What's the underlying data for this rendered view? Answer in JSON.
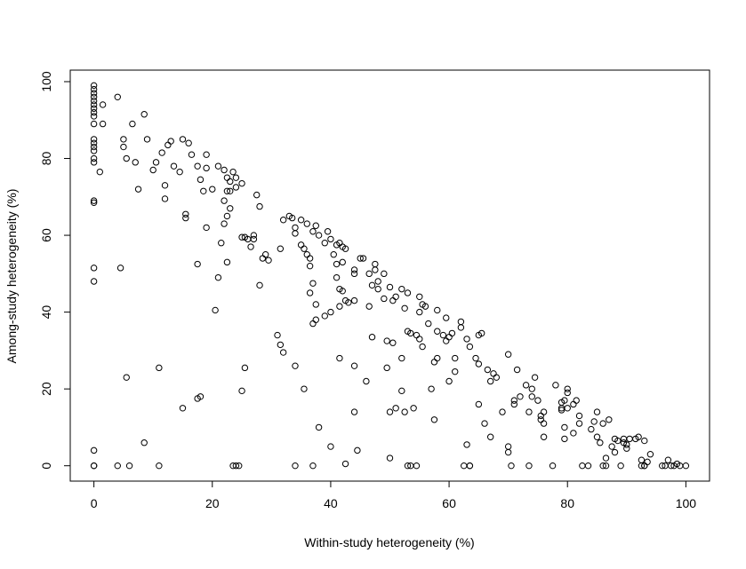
{
  "chart_data": {
    "type": "scatter",
    "title": "",
    "xlabel": "Within-study heterogeneity (%)",
    "ylabel": "Among-study heterogeneity (%)",
    "xlim": [
      -4,
      104
    ],
    "ylim": [
      -4,
      103
    ],
    "xticks": [
      0,
      20,
      40,
      60,
      80,
      100
    ],
    "yticks": [
      0,
      20,
      40,
      60,
      80,
      100
    ],
    "xtick_labels": [
      "0",
      "20",
      "40",
      "60",
      "80",
      "100"
    ],
    "ytick_labels": [
      "0",
      "20",
      "40",
      "60",
      "80",
      "100"
    ],
    "grid": false,
    "marker": "open-circle",
    "points": [
      [
        0,
        99
      ],
      [
        0,
        98
      ],
      [
        0,
        97
      ],
      [
        0,
        96
      ],
      [
        0,
        95
      ],
      [
        0,
        94
      ],
      [
        0,
        93
      ],
      [
        0,
        92
      ],
      [
        0,
        91
      ],
      [
        0,
        89
      ],
      [
        0,
        85
      ],
      [
        0,
        84
      ],
      [
        0,
        83
      ],
      [
        0,
        82
      ],
      [
        0,
        80
      ],
      [
        0,
        79
      ],
      [
        0,
        69
      ],
      [
        0,
        68.5
      ],
      [
        0,
        51.5
      ],
      [
        0,
        48
      ],
      [
        0,
        4
      ],
      [
        0,
        0
      ],
      [
        0,
        0
      ],
      [
        1.5,
        94
      ],
      [
        1.5,
        89
      ],
      [
        1,
        76.5
      ],
      [
        4,
        96
      ],
      [
        4.5,
        51.5
      ],
      [
        5,
        85
      ],
      [
        5,
        83
      ],
      [
        5.5,
        80
      ],
      [
        5.5,
        23
      ],
      [
        4,
        0
      ],
      [
        6,
        0
      ],
      [
        6.5,
        89
      ],
      [
        7,
        79
      ],
      [
        7.5,
        72
      ],
      [
        8.5,
        91.5
      ],
      [
        9,
        85
      ],
      [
        8.5,
        6
      ],
      [
        10,
        77
      ],
      [
        10.5,
        79
      ],
      [
        11.5,
        81.5
      ],
      [
        12,
        73
      ],
      [
        12,
        69.5
      ],
      [
        11,
        25.5
      ],
      [
        11,
        0
      ],
      [
        12.5,
        83.5
      ],
      [
        13,
        84.5
      ],
      [
        13.5,
        78
      ],
      [
        14.5,
        76.5
      ],
      [
        15,
        85
      ],
      [
        15.5,
        64.5
      ],
      [
        15.5,
        65.5
      ],
      [
        15,
        15
      ],
      [
        16,
        84
      ],
      [
        16.5,
        81
      ],
      [
        17.5,
        78
      ],
      [
        17.5,
        52.5
      ],
      [
        18,
        74.5
      ],
      [
        18.5,
        71.5
      ],
      [
        18,
        18
      ],
      [
        17.5,
        17.5
      ],
      [
        19,
        81
      ],
      [
        19,
        77.5
      ],
      [
        19,
        62
      ],
      [
        20,
        72
      ],
      [
        20.5,
        40.5
      ],
      [
        21,
        49
      ],
      [
        21,
        78
      ],
      [
        21.5,
        58
      ],
      [
        22,
        77
      ],
      [
        22,
        69
      ],
      [
        22,
        63
      ],
      [
        22.5,
        75
      ],
      [
        22.5,
        71.5
      ],
      [
        22.5,
        65
      ],
      [
        22.5,
        53
      ],
      [
        23,
        74
      ],
      [
        23,
        67
      ],
      [
        23,
        71.5
      ],
      [
        23.5,
        76.5
      ],
      [
        24,
        75
      ],
      [
        24,
        72.5
      ],
      [
        25,
        73.5
      ],
      [
        25,
        59.5
      ],
      [
        25.5,
        59.5
      ],
      [
        25,
        19.5
      ],
      [
        25.5,
        25.5
      ],
      [
        24.5,
        0
      ],
      [
        23.5,
        0
      ],
      [
        24,
        0
      ],
      [
        26,
        59
      ],
      [
        26.5,
        57
      ],
      [
        27,
        59
      ],
      [
        27,
        60
      ],
      [
        27.5,
        70.5
      ],
      [
        28,
        67.5
      ],
      [
        28,
        47
      ],
      [
        28.5,
        54
      ],
      [
        29,
        55
      ],
      [
        29.5,
        53.5
      ],
      [
        31,
        34
      ],
      [
        31.5,
        31.5
      ],
      [
        31.5,
        56.5
      ],
      [
        32,
        64
      ],
      [
        32,
        29.5
      ],
      [
        33,
        65
      ],
      [
        33.5,
        64.5
      ],
      [
        34,
        62
      ],
      [
        34,
        60.5
      ],
      [
        34,
        26
      ],
      [
        34,
        0
      ],
      [
        35,
        64
      ],
      [
        35,
        57.5
      ],
      [
        35.5,
        56.5
      ],
      [
        35.5,
        20
      ],
      [
        36,
        63
      ],
      [
        36,
        55
      ],
      [
        36.5,
        54
      ],
      [
        36.5,
        52
      ],
      [
        36.5,
        45
      ],
      [
        37,
        61
      ],
      [
        37,
        47.5
      ],
      [
        37,
        37
      ],
      [
        37,
        0
      ],
      [
        37.5,
        62.5
      ],
      [
        37.5,
        42
      ],
      [
        37.5,
        38
      ],
      [
        38,
        60
      ],
      [
        38,
        10
      ],
      [
        39,
        58
      ],
      [
        39,
        39
      ],
      [
        39.5,
        61
      ],
      [
        40,
        59
      ],
      [
        40,
        40
      ],
      [
        40,
        5
      ],
      [
        40.5,
        55
      ],
      [
        41,
        57.5
      ],
      [
        41,
        52.5
      ],
      [
        41,
        49
      ],
      [
        41.5,
        58
      ],
      [
        41.5,
        46
      ],
      [
        41.5,
        41.5
      ],
      [
        41.5,
        28
      ],
      [
        42,
        57
      ],
      [
        42,
        53
      ],
      [
        42,
        45.5
      ],
      [
        42.5,
        56.5
      ],
      [
        42.5,
        43
      ],
      [
        42.5,
        0.5
      ],
      [
        43,
        42.5
      ],
      [
        44,
        51
      ],
      [
        44,
        50
      ],
      [
        44,
        43
      ],
      [
        44,
        26
      ],
      [
        44,
        14
      ],
      [
        44.5,
        4
      ],
      [
        45,
        54
      ],
      [
        45.5,
        54
      ],
      [
        46,
        22
      ],
      [
        46.5,
        50
      ],
      [
        46.5,
        41.5
      ],
      [
        47,
        47
      ],
      [
        47,
        33.5
      ],
      [
        47.5,
        52.5
      ],
      [
        47.5,
        51
      ],
      [
        48,
        48
      ],
      [
        48,
        46
      ],
      [
        49,
        50
      ],
      [
        49,
        43.5
      ],
      [
        49.5,
        32.5
      ],
      [
        49.5,
        25.5
      ],
      [
        50,
        46.5
      ],
      [
        50,
        14
      ],
      [
        50,
        2
      ],
      [
        50.5,
        43
      ],
      [
        50.5,
        32
      ],
      [
        51,
        44
      ],
      [
        51,
        15
      ],
      [
        52,
        46
      ],
      [
        52,
        28
      ],
      [
        52,
        19.5
      ],
      [
        52.5,
        14
      ],
      [
        52.5,
        41
      ],
      [
        53,
        45
      ],
      [
        53,
        35
      ],
      [
        53.5,
        34.5
      ],
      [
        53,
        0
      ],
      [
        53.5,
        0
      ],
      [
        54,
        15
      ],
      [
        54.5,
        34
      ],
      [
        54.5,
        0
      ],
      [
        55,
        44
      ],
      [
        55,
        40
      ],
      [
        55,
        33
      ],
      [
        55.5,
        42
      ],
      [
        55.5,
        31
      ],
      [
        56,
        41.5
      ],
      [
        56.5,
        37
      ],
      [
        57,
        20
      ],
      [
        57.5,
        27
      ],
      [
        57.5,
        12
      ],
      [
        58,
        40.5
      ],
      [
        58,
        35
      ],
      [
        58,
        28
      ],
      [
        59,
        34
      ],
      [
        59.5,
        38.5
      ],
      [
        59.5,
        32.5
      ],
      [
        60,
        33.5
      ],
      [
        60,
        22
      ],
      [
        60.5,
        34.5
      ],
      [
        61,
        28
      ],
      [
        61,
        24.5
      ],
      [
        62,
        37.5
      ],
      [
        62,
        36
      ],
      [
        62.5,
        0
      ],
      [
        63,
        33
      ],
      [
        63,
        5.5
      ],
      [
        63.5,
        31
      ],
      [
        63.5,
        0
      ],
      [
        63.5,
        0
      ],
      [
        64.5,
        28
      ],
      [
        65,
        34
      ],
      [
        65,
        26.5
      ],
      [
        65,
        16
      ],
      [
        65.5,
        34.5
      ],
      [
        66,
        11
      ],
      [
        66.5,
        25
      ],
      [
        67,
        22
      ],
      [
        67,
        7.5
      ],
      [
        67.5,
        24
      ],
      [
        68,
        23
      ],
      [
        69,
        14
      ],
      [
        70,
        29
      ],
      [
        70,
        5
      ],
      [
        70,
        3.5
      ],
      [
        70.5,
        0
      ],
      [
        71,
        17
      ],
      [
        71,
        16
      ],
      [
        71.5,
        25
      ],
      [
        72,
        18
      ],
      [
        73,
        21
      ],
      [
        73.5,
        14
      ],
      [
        73.5,
        0
      ],
      [
        74,
        18
      ],
      [
        74,
        20
      ],
      [
        74.5,
        23
      ],
      [
        75,
        17
      ],
      [
        75.5,
        13
      ],
      [
        75.5,
        12
      ],
      [
        76,
        14
      ],
      [
        76,
        7.5
      ],
      [
        76,
        11
      ],
      [
        77.5,
        0
      ],
      [
        78,
        21
      ],
      [
        79,
        16.5
      ],
      [
        79,
        15
      ],
      [
        79,
        14.5
      ],
      [
        79.5,
        17
      ],
      [
        79.5,
        10
      ],
      [
        79.5,
        7
      ],
      [
        80,
        20
      ],
      [
        80,
        19
      ],
      [
        80,
        15
      ],
      [
        81,
        16
      ],
      [
        81,
        8.5
      ],
      [
        81.5,
        17
      ],
      [
        82,
        13
      ],
      [
        82,
        11
      ],
      [
        82.5,
        0
      ],
      [
        83.5,
        0
      ],
      [
        84,
        9.5
      ],
      [
        84.5,
        11.5
      ],
      [
        85,
        14
      ],
      [
        85,
        7.5
      ],
      [
        85.5,
        6
      ],
      [
        86,
        11
      ],
      [
        86,
        0
      ],
      [
        86.5,
        0
      ],
      [
        86.5,
        2
      ],
      [
        87,
        12
      ],
      [
        87.5,
        5
      ],
      [
        88,
        7
      ],
      [
        88,
        3.5
      ],
      [
        88.5,
        6.5
      ],
      [
        89,
        0
      ],
      [
        89.5,
        6
      ],
      [
        89.5,
        7
      ],
      [
        90,
        5.5
      ],
      [
        90,
        4.5
      ],
      [
        90.5,
        7
      ],
      [
        91.5,
        7
      ],
      [
        92,
        7.5
      ],
      [
        92.5,
        1.5
      ],
      [
        92.5,
        0
      ],
      [
        93,
        6.5
      ],
      [
        93,
        0
      ],
      [
        93,
        0
      ],
      [
        93.5,
        1
      ],
      [
        94,
        3
      ],
      [
        96,
        0
      ],
      [
        96.5,
        0
      ],
      [
        97,
        1.5
      ],
      [
        97.5,
        0
      ],
      [
        98,
        0
      ],
      [
        98.5,
        0.5
      ],
      [
        99,
        0
      ],
      [
        100,
        0
      ]
    ]
  }
}
